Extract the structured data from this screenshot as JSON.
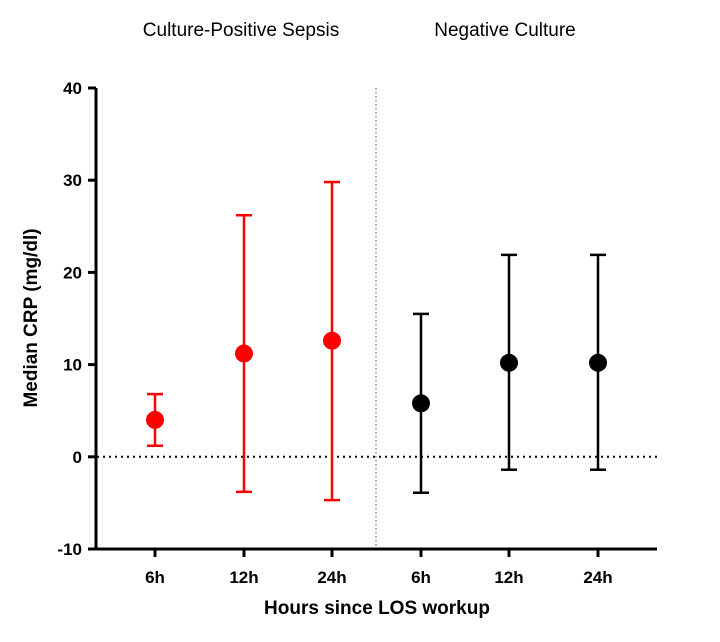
{
  "chart_data": {
    "type": "scatter",
    "panel_titles": [
      "Culture-Positive Sepsis",
      "Negative Culture"
    ],
    "xlabel": "Hours since LOS workup",
    "ylabel": "Median CRP (mg/dl)",
    "ylim": [
      -10,
      40
    ],
    "yticks": [
      -10,
      0,
      10,
      20,
      30,
      40
    ],
    "categories": [
      "6h",
      "12h",
      "24h",
      "6h",
      "12h",
      "24h"
    ],
    "reference_line": 0,
    "divider": "dotted vertical line between the two groups",
    "series": [
      {
        "group": "Culture-Positive Sepsis",
        "color": "#ff0000",
        "points": [
          {
            "x": "6h",
            "median": 4.0,
            "lower": 1.2,
            "upper": 6.8
          },
          {
            "x": "12h",
            "median": 11.2,
            "lower": -3.8,
            "upper": 26.2
          },
          {
            "x": "24h",
            "median": 12.6,
            "lower": -4.7,
            "upper": 29.8
          }
        ]
      },
      {
        "group": "Negative Culture",
        "color": "#000000",
        "points": [
          {
            "x": "6h",
            "median": 5.8,
            "lower": -3.9,
            "upper": 15.5
          },
          {
            "x": "12h",
            "median": 10.2,
            "lower": -1.4,
            "upper": 21.9
          },
          {
            "x": "24h",
            "median": 10.2,
            "lower": -1.4,
            "upper": 21.9
          }
        ]
      }
    ]
  }
}
